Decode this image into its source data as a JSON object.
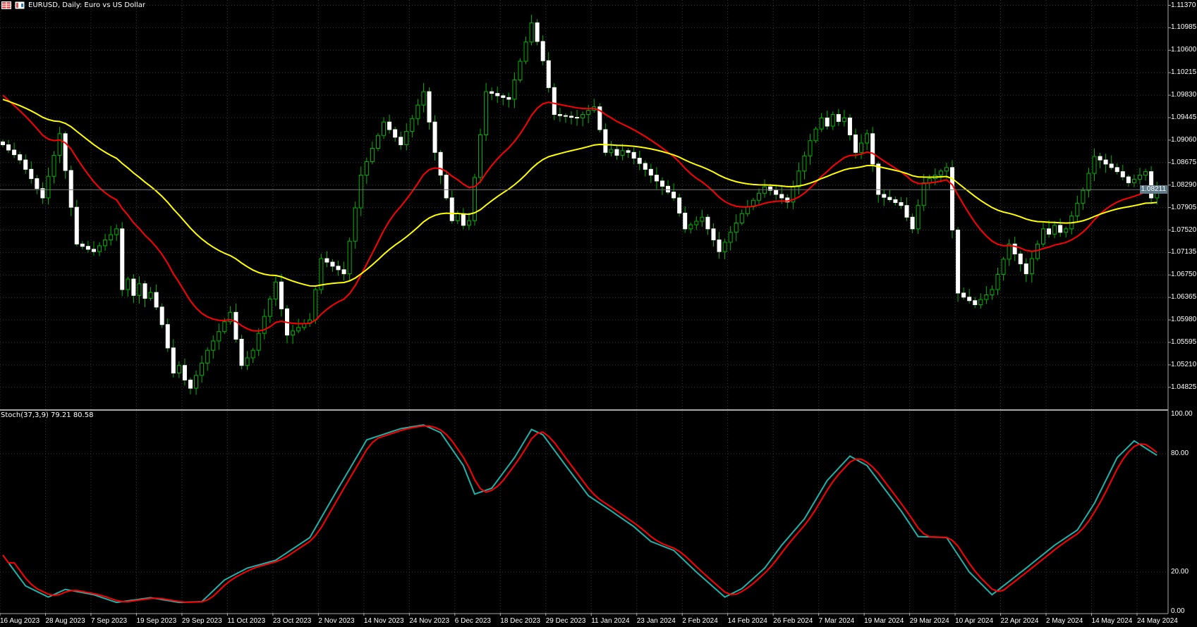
{
  "window": {
    "title": "EURUSD, Daily:  Euro vs US Dollar",
    "icons": [
      "grid-menu-icon",
      "chart-type-icon"
    ]
  },
  "colors": {
    "background": "#000000",
    "bull_outline": "#00b400",
    "bear_body": "#ffffff",
    "wick": "#00b400",
    "ma_fast": "#ff0000",
    "ma_slow": "#ffff00",
    "stoch_main": "#20b2aa",
    "stoch_signal": "#ff0000",
    "grid": "#3a3a3a",
    "current_price_bg": "#5f7c8c"
  },
  "price_axis": {
    "ticks": [
      "1.11370",
      "1.10985",
      "1.10600",
      "1.10215",
      "1.09830",
      "1.09445",
      "1.09060",
      "1.08675",
      "1.08290",
      "1.07905",
      "1.07520",
      "1.07135",
      "1.06750",
      "1.06365",
      "1.05980",
      "1.05595",
      "1.05210",
      "1.04825"
    ],
    "current_price": "1.08211"
  },
  "stoch": {
    "label": "Stoch(37,3,9) 79.21 80.58",
    "ticks": [
      "100.00",
      "80.00",
      "20.00",
      "0.00"
    ],
    "levels": [
      80,
      20
    ]
  },
  "time_axis": {
    "labels": [
      "16 Aug 2023",
      "28 Aug 2023",
      "7 Sep 2023",
      "19 Sep 2023",
      "29 Sep 2023",
      "11 Oct 2023",
      "23 Oct 2023",
      "2 Nov 2023",
      "14 Nov 2023",
      "24 Nov 2023",
      "6 Dec 2023",
      "18 Dec 2023",
      "29 Dec 2023",
      "11 Jan 2024",
      "23 Jan 2024",
      "2 Feb 2024",
      "14 Feb 2024",
      "26 Feb 2024",
      "7 Mar 2024",
      "19 Mar 2024",
      "29 Mar 2024",
      "10 Apr 2024",
      "22 Apr 2024",
      "2 May 2024",
      "14 May 2024",
      "24 May 2024"
    ],
    "bars_per_label": 8
  },
  "chart_data": {
    "type": "candlestick",
    "symbol": "EURUSD",
    "timeframe": "Daily",
    "ylim": [
      1.046,
      1.1145
    ],
    "close": [
      1.0898,
      1.0889,
      1.0881,
      1.0872,
      1.0856,
      1.084,
      1.0823,
      1.0807,
      1.0844,
      1.088,
      1.0917,
      1.0854,
      1.0791,
      1.0728,
      1.0724,
      1.0719,
      1.0715,
      1.0725,
      1.0735,
      1.0744,
      1.0754,
      1.065,
      1.0668,
      1.064,
      1.066,
      1.0635,
      1.0645,
      1.062,
      1.059,
      1.055,
      1.0507,
      1.052,
      1.0495,
      1.0481,
      1.0503,
      1.0524,
      1.0546,
      1.0562,
      1.0578,
      1.0595,
      1.0611,
      1.0565,
      1.052,
      1.0533,
      1.0546,
      1.0575,
      1.0604,
      1.0634,
      1.0663,
      1.0617,
      1.0572,
      1.0579,
      1.0585,
      1.0592,
      1.0598,
      1.065,
      1.0703,
      1.0697,
      1.069,
      1.0684,
      1.0677,
      1.0733,
      1.079,
      1.0846,
      1.0869,
      1.0892,
      1.0914,
      1.0937,
      1.0924,
      1.0911,
      1.0898,
      1.0921,
      1.0943,
      1.0966,
      1.0989,
      1.0937,
      1.0885,
      1.0846,
      1.0807,
      1.0768,
      1.078,
      1.076,
      1.0768,
      1.0842,
      1.0915,
      1.0989,
      1.0986,
      1.0982,
      1.0979,
      1.0976,
      1.1009,
      1.1041,
      1.1074,
      1.1107,
      1.1075,
      1.1042,
      1.0996,
      1.095,
      1.0948,
      1.0947,
      1.0945,
      1.0944,
      1.095,
      1.0957,
      1.0963,
      1.0924,
      1.0885,
      1.089,
      1.088,
      1.0888,
      1.0885,
      1.0875,
      1.0866,
      1.0856,
      1.0846,
      1.0836,
      1.0827,
      1.0817,
      1.0807,
      1.0781,
      1.0754,
      1.0761,
      1.0767,
      1.0774,
      1.0754,
      1.0735,
      1.0715,
      1.0731,
      1.0748,
      1.0764,
      1.078,
      1.0792,
      1.0803,
      1.0815,
      1.0826,
      1.082,
      1.0813,
      1.0807,
      1.08,
      1.0826,
      1.0853,
      1.0879,
      1.0905,
      1.0925,
      1.0944,
      1.093,
      1.095,
      1.0938,
      1.0944,
      1.0915,
      1.0885,
      1.0901,
      1.0917,
      1.0865,
      1.0813,
      1.0808,
      1.0804,
      1.0799,
      1.0794,
      1.0774,
      1.0754,
      1.0794,
      1.0833,
      1.084,
      1.0846,
      1.0853,
      1.0859,
      1.0752,
      1.0644,
      1.0637,
      1.0631,
      1.0624,
      1.0633,
      1.0641,
      1.065,
      1.0676,
      1.0702,
      1.0728,
      1.0711,
      1.0694,
      1.0677,
      1.0703,
      1.0728,
      1.0754,
      1.0745,
      1.076,
      1.0748,
      1.0754,
      1.0776,
      1.0798,
      1.082,
      1.0849,
      1.0878,
      1.0872,
      1.0865,
      1.0859,
      1.0852,
      1.0843,
      1.0833,
      1.0839,
      1.0846,
      1.0852,
      1.0807,
      1.0821
    ],
    "ma_fast_start": 1.0992,
    "ma_slow_start": 1.0979,
    "stoch_main_points": [
      [
        0,
        28.6
      ],
      [
        4,
        13
      ],
      [
        8,
        7.3
      ],
      [
        11,
        11.2
      ],
      [
        16,
        8.5
      ],
      [
        20,
        4.6
      ],
      [
        26,
        7
      ],
      [
        31,
        4.6
      ],
      [
        35,
        5
      ],
      [
        39,
        16
      ],
      [
        43,
        22
      ],
      [
        48,
        26
      ],
      [
        54,
        37.5
      ],
      [
        59,
        62.5
      ],
      [
        63,
        82
      ],
      [
        64,
        87
      ],
      [
        70,
        92.7
      ],
      [
        74,
        94.6
      ],
      [
        77,
        90.7
      ],
      [
        81,
        74
      ],
      [
        83,
        59.5
      ],
      [
        86,
        62.5
      ],
      [
        90,
        78
      ],
      [
        93,
        92.3
      ],
      [
        95,
        89.6
      ],
      [
        99,
        74
      ],
      [
        103,
        58.7
      ],
      [
        107,
        51
      ],
      [
        111,
        43
      ],
      [
        114,
        35.5
      ],
      [
        118,
        31
      ],
      [
        122,
        20
      ],
      [
        127,
        7.3
      ],
      [
        130,
        11.6
      ],
      [
        134,
        22
      ],
      [
        137,
        33.6
      ],
      [
        141,
        47
      ],
      [
        145,
        66.4
      ],
      [
        149,
        78.8
      ],
      [
        152,
        74
      ],
      [
        156,
        58.7
      ],
      [
        158,
        51
      ],
      [
        161,
        38
      ],
      [
        166,
        37.5
      ],
      [
        170,
        20
      ],
      [
        174,
        8.5
      ],
      [
        180,
        22
      ],
      [
        185,
        33.6
      ],
      [
        189,
        41.3
      ],
      [
        192,
        54.8
      ],
      [
        196,
        78
      ],
      [
        199,
        86.5
      ],
      [
        203,
        79.21
      ]
    ],
    "stoch_main_last": 79.21,
    "stoch_signal_last": 80.58
  }
}
